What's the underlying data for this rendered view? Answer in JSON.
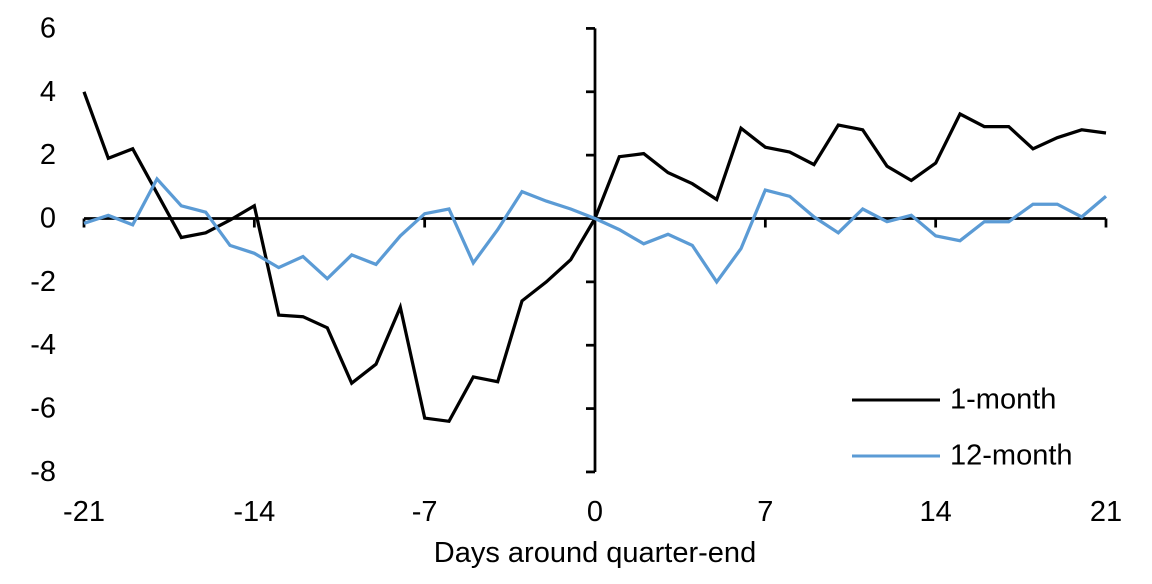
{
  "chart_data": {
    "type": "line",
    "title": "",
    "xlabel": "Days around quarter-end",
    "ylabel": "",
    "xlim": [
      -21,
      21
    ],
    "ylim": [
      -8,
      6
    ],
    "x_ticks": [
      -21,
      -14,
      -7,
      0,
      7,
      14,
      21
    ],
    "y_ticks": [
      6,
      4,
      2,
      0,
      -2,
      -4,
      -6,
      -8
    ],
    "grid": false,
    "legend_position": "lower-right",
    "x": [
      -21,
      -20,
      -19,
      -18,
      -17,
      -16,
      -15,
      -14,
      -13,
      -12,
      -11,
      -10,
      -9,
      -8,
      -7,
      -6,
      -5,
      -4,
      -3,
      -2,
      -1,
      0,
      1,
      2,
      3,
      4,
      5,
      6,
      7,
      8,
      9,
      10,
      11,
      12,
      13,
      14,
      15,
      16,
      17,
      18,
      19,
      20,
      21
    ],
    "series": [
      {
        "name": "1-month",
        "color": "#000000",
        "values": [
          4.0,
          1.9,
          2.2,
          0.8,
          -0.6,
          -0.45,
          -0.05,
          0.4,
          -3.05,
          -3.1,
          -3.45,
          -5.2,
          -4.6,
          -2.8,
          -6.3,
          -6.4,
          -5.0,
          -5.15,
          -2.6,
          -2.0,
          -1.3,
          0,
          1.95,
          2.05,
          1.45,
          1.1,
          0.6,
          2.85,
          2.25,
          2.1,
          1.7,
          2.95,
          2.8,
          1.65,
          1.2,
          1.75,
          3.3,
          2.9,
          2.9,
          2.2,
          2.55,
          2.8,
          2.7
        ]
      },
      {
        "name": "12-month",
        "color": "#5B9BD5",
        "values": [
          -0.15,
          0.1,
          -0.2,
          1.25,
          0.4,
          0.2,
          -0.85,
          -1.1,
          -1.55,
          -1.2,
          -1.9,
          -1.15,
          -1.45,
          -0.55,
          0.15,
          0.3,
          -1.4,
          -0.35,
          0.85,
          0.55,
          0.3,
          0,
          -0.35,
          -0.8,
          -0.5,
          -0.85,
          -2.0,
          -0.95,
          0.9,
          0.7,
          0.05,
          -0.45,
          0.3,
          -0.1,
          0.1,
          -0.55,
          -0.7,
          -0.1,
          -0.1,
          0.45,
          0.45,
          0.05,
          0.7
        ]
      }
    ]
  }
}
